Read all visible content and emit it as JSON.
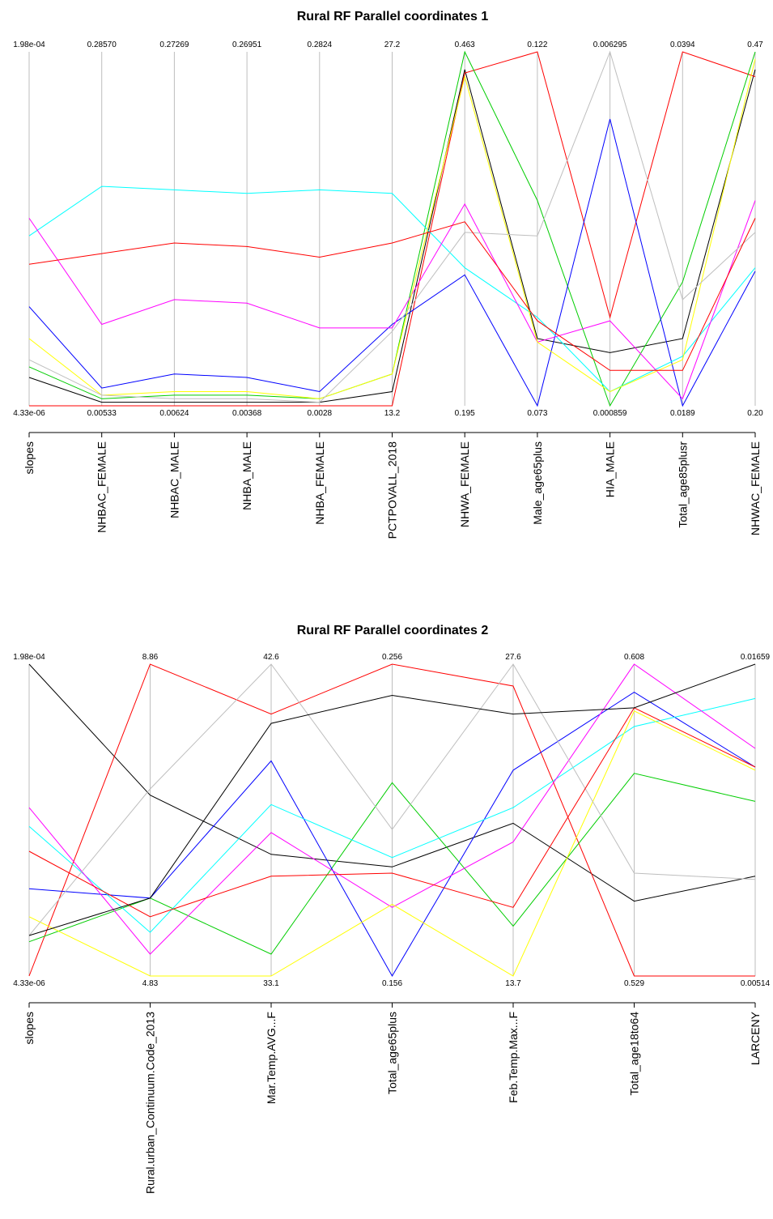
{
  "chart_data": [
    {
      "type": "parallel_coordinates",
      "title": "Rural RF Parallel coordinates 1",
      "axes": [
        {
          "name": "slopes",
          "max": "1.98e-04",
          "min": "4.33e-06"
        },
        {
          "name": "NHBAC_FEMALE",
          "max": "0.28570",
          "min": "0.00533"
        },
        {
          "name": "NHBAC_MALE",
          "max": "0.27269",
          "min": "0.00624"
        },
        {
          "name": "NHBA_MALE",
          "max": "0.26951",
          "min": "0.00368"
        },
        {
          "name": "NHBA_FEMALE",
          "max": "0.2824",
          "min": "0.0028"
        },
        {
          "name": "PCTPOVALL_2018",
          "max": "27.2",
          "min": "13.2"
        },
        {
          "name": "NHWA_FEMALE",
          "max": "0.463",
          "min": "0.195"
        },
        {
          "name": "Male_age65plus",
          "max": "0.122",
          "min": "0.073"
        },
        {
          "name": "HIA_MALE",
          "max": "0.006295",
          "min": "0.000859"
        },
        {
          "name": "Total_age85plusr",
          "max": "0.0394",
          "min": "0.0189"
        },
        {
          "name": "NHWAC_FEMALE",
          "max": "0.47",
          "min": "0.20"
        }
      ],
      "series": [
        {
          "color": "#000000",
          "values": [
            0.08,
            0.01,
            0.01,
            0.01,
            0.01,
            0.04,
            0.95,
            0.19,
            0.15,
            0.19,
            0.95
          ]
        },
        {
          "color": "#ff0000",
          "values": [
            0.0,
            0.0,
            0.0,
            0.0,
            0.0,
            0.0,
            0.94,
            1.0,
            0.25,
            1.0,
            0.93
          ]
        },
        {
          "color": "#00cd00",
          "values": [
            0.11,
            0.02,
            0.03,
            0.03,
            0.02,
            0.09,
            1.0,
            0.58,
            0.0,
            0.35,
            1.0
          ]
        },
        {
          "color": "#0000ff",
          "values": [
            0.28,
            0.05,
            0.09,
            0.08,
            0.04,
            0.23,
            0.37,
            0.0,
            0.81,
            0.0,
            0.38
          ]
        },
        {
          "color": "#00ffff",
          "values": [
            0.48,
            0.62,
            0.61,
            0.6,
            0.61,
            0.6,
            0.39,
            0.25,
            0.04,
            0.14,
            0.39
          ]
        },
        {
          "color": "#ff00ff",
          "values": [
            0.53,
            0.23,
            0.3,
            0.29,
            0.22,
            0.22,
            0.57,
            0.18,
            0.24,
            0.02,
            0.58
          ]
        },
        {
          "color": "#ffff00",
          "values": [
            0.19,
            0.03,
            0.04,
            0.04,
            0.02,
            0.09,
            0.93,
            0.18,
            0.04,
            0.13,
            0.98
          ]
        },
        {
          "color": "#bebebe",
          "values": [
            0.13,
            0.03,
            0.02,
            0.02,
            0.01,
            0.21,
            0.49,
            0.48,
            1.0,
            0.3,
            0.49
          ]
        },
        {
          "color": "#ff0000",
          "values": [
            0.4,
            0.43,
            0.46,
            0.45,
            0.42,
            0.46,
            0.52,
            0.24,
            0.1,
            0.1,
            0.53
          ]
        }
      ]
    },
    {
      "type": "parallel_coordinates",
      "title": "Rural RF Parallel coordinates 2",
      "axes": [
        {
          "name": "slopes",
          "max": "1.98e-04",
          "min": "4.33e-06"
        },
        {
          "name": "Rural.urban_Continuum.Code_2013",
          "max": "8.86",
          "min": "4.83"
        },
        {
          "name": "Mar.Temp.AVG...F",
          "max": "42.6",
          "min": "33.1"
        },
        {
          "name": "Total_age65plus",
          "max": "0.256",
          "min": "0.156"
        },
        {
          "name": "Feb.Temp.Max...F",
          "max": "27.6",
          "min": "13.7"
        },
        {
          "name": "Total_age18to64",
          "max": "0.608",
          "min": "0.529"
        },
        {
          "name": "LARCENY",
          "max": "0.01659",
          "min": "0.00514"
        }
      ],
      "series": [
        {
          "color": "#000000",
          "values": [
            1.0,
            0.58,
            0.39,
            0.35,
            0.49,
            0.24,
            0.32
          ]
        },
        {
          "color": "#ff0000",
          "values": [
            0.0,
            1.0,
            0.84,
            1.0,
            0.93,
            0.0,
            0.0
          ]
        },
        {
          "color": "#00cd00",
          "values": [
            0.11,
            0.25,
            0.07,
            0.62,
            0.16,
            0.65,
            0.56
          ]
        },
        {
          "color": "#0000ff",
          "values": [
            0.28,
            0.25,
            0.69,
            0.0,
            0.66,
            0.91,
            0.67
          ]
        },
        {
          "color": "#00ffff",
          "values": [
            0.48,
            0.14,
            0.55,
            0.38,
            0.54,
            0.8,
            0.89
          ]
        },
        {
          "color": "#ff00ff",
          "values": [
            0.54,
            0.07,
            0.46,
            0.22,
            0.43,
            1.0,
            0.73
          ]
        },
        {
          "color": "#ffff00",
          "values": [
            0.19,
            0.0,
            0.0,
            0.23,
            0.0,
            0.85,
            0.66
          ]
        },
        {
          "color": "#bebebe",
          "values": [
            0.13,
            0.6,
            1.0,
            0.47,
            1.0,
            0.33,
            0.31
          ]
        },
        {
          "color": "#ff0000",
          "values": [
            0.4,
            0.19,
            0.32,
            0.33,
            0.22,
            0.86,
            0.67
          ]
        },
        {
          "color": "#000000",
          "values": [
            0.13,
            0.25,
            0.81,
            0.9,
            0.84,
            0.86,
            1.0
          ]
        }
      ]
    }
  ]
}
